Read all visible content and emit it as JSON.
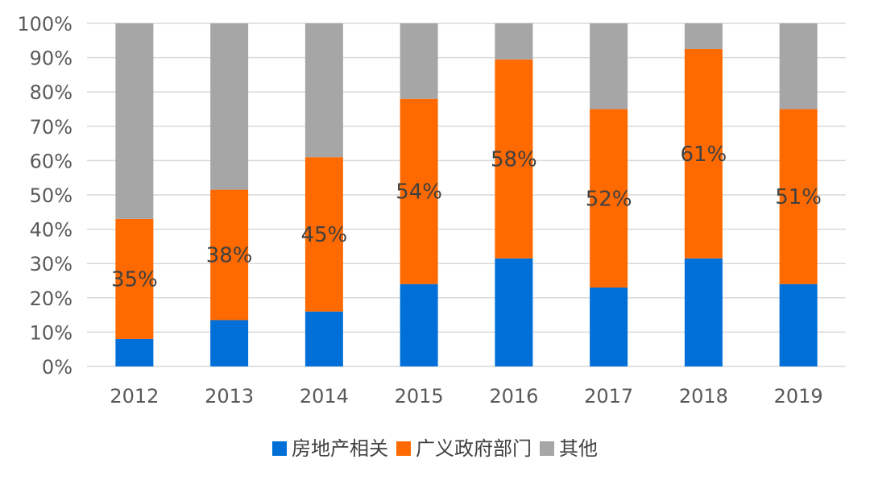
{
  "chart_data": {
    "type": "bar",
    "stacked": true,
    "categories": [
      "2012",
      "2013",
      "2014",
      "2015",
      "2016",
      "2017",
      "2018",
      "2019"
    ],
    "series": [
      {
        "name": "房地产相关",
        "color": "#0070D8",
        "values": [
          8,
          13.5,
          16,
          24,
          31.5,
          23,
          31.5,
          24
        ]
      },
      {
        "name": "广义政府部门",
        "color": "#FF6A00",
        "values": [
          35,
          38,
          45,
          54,
          58,
          52,
          61,
          51
        ]
      },
      {
        "name": "其他",
        "color": "#A6A6A6",
        "values": [
          57,
          48.5,
          39,
          22,
          10.5,
          25,
          7.5,
          25
        ]
      }
    ],
    "data_labels": [
      "35%",
      "38%",
      "45%",
      "54%",
      "58%",
      "52%",
      "61%",
      "51%"
    ],
    "y_ticks": [
      "0%",
      "10%",
      "20%",
      "30%",
      "40%",
      "50%",
      "60%",
      "70%",
      "80%",
      "90%",
      "100%"
    ],
    "ylim": [
      0,
      100
    ],
    "grid": true,
    "legend_position": "bottom"
  }
}
